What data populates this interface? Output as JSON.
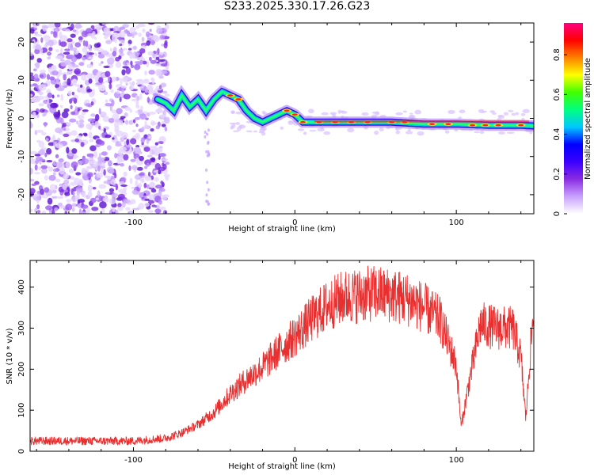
{
  "title": "S233.2025.330.17.26.G23",
  "chart_data": [
    {
      "type": "heatmap",
      "xlabel": "Height of straight line (km)",
      "ylabel": "Frequency (Hz)",
      "xlim": [
        -164,
        148
      ],
      "ylim": [
        -25,
        25
      ],
      "x_ticks": [
        -100,
        0,
        100
      ],
      "y_ticks": [
        -20,
        -10,
        0,
        10,
        20
      ],
      "colorbar": {
        "label": "Normalized spectral amplitude",
        "range": [
          0,
          0.96
        ],
        "ticks": [
          0,
          0.2,
          0.4,
          0.6,
          0.8
        ],
        "colors": [
          "#ffffff",
          "#c8a0ff",
          "#8a2be2",
          "#3a00ff",
          "#0000ff",
          "#00c8ff",
          "#00ff80",
          "#40ff00",
          "#ffff00",
          "#ff8000",
          "#ff0000",
          "#ff0080"
        ]
      },
      "ridge": {
        "x": [
          -85,
          -80,
          -75,
          -70,
          -65,
          -60,
          -55,
          -50,
          -45,
          -40,
          -35,
          -30,
          -25,
          -20,
          -15,
          -10,
          -5,
          0,
          5,
          10,
          20,
          40,
          60,
          80,
          100,
          120,
          140,
          148
        ],
        "y": [
          5,
          4,
          2,
          6,
          3,
          5,
          2,
          5,
          7,
          6,
          5,
          2,
          0,
          -1,
          0,
          1,
          2,
          1,
          -1,
          -1,
          -1,
          -1,
          -1,
          -1.5,
          -1.5,
          -1.8,
          -1.8,
          -2
        ]
      },
      "noise_region_x": [
        -164,
        -85
      ]
    },
    {
      "type": "line",
      "xlabel": "Height of straight line (km)",
      "ylabel": "SNR (10 * v/v)",
      "xlim": [
        -164,
        148
      ],
      "ylim": [
        0,
        465
      ],
      "x_ticks": [
        -100,
        0,
        100
      ],
      "y_ticks": [
        0,
        100,
        200,
        300,
        400
      ],
      "series": [
        {
          "name": "SNR",
          "color": "#e83030",
          "envelope_x": [
            -164,
            -130,
            -100,
            -80,
            -70,
            -60,
            -50,
            -40,
            -30,
            -20,
            -10,
            0,
            10,
            20,
            30,
            40,
            50,
            60,
            70,
            80,
            90,
            100,
            103,
            108,
            115,
            125,
            135,
            140,
            143,
            146,
            148
          ],
          "envelope_y": [
            25,
            25,
            25,
            32,
            45,
            65,
            95,
            140,
            175,
            205,
            245,
            280,
            320,
            355,
            375,
            380,
            385,
            380,
            370,
            350,
            320,
            210,
            60,
            170,
            310,
            300,
            300,
            230,
            80,
            250,
            340
          ]
        }
      ]
    }
  ]
}
